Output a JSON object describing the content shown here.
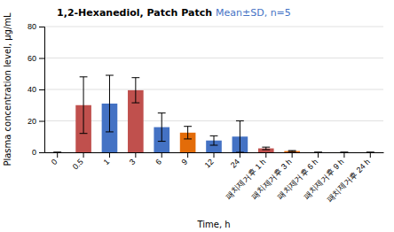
{
  "chart_data": {
    "type": "bar",
    "title": "1,2-Hexanediol, Patch Patch",
    "subtitle": "Mean±SD, n=5",
    "xlabel": "Time, h",
    "ylabel": "Plasma concentration level, μg/mL",
    "categories": [
      "0",
      "0.5",
      "1",
      "3",
      "6",
      "9",
      "12",
      "24",
      "패치제거후 1 h",
      "패치제거후 3 h",
      "패치제거후 6 h",
      "패치제거후 9 h",
      "패치제거후 24 h"
    ],
    "values": [
      0,
      30,
      31,
      39.5,
      16,
      12.5,
      7.5,
      10,
      2.5,
      0.8,
      0,
      0,
      0
    ],
    "errors": [
      0,
      18,
      18,
      8,
      9,
      4,
      3,
      10,
      0.8,
      0.3,
      0,
      0,
      0
    ],
    "colors": [
      "#4472c4",
      "#c0504d",
      "#4472c4",
      "#c0504d",
      "#4472c4",
      "#e36c09",
      "#4472c4",
      "#4472c4",
      "#c0504d",
      "#e36c09",
      "#4472c4",
      "#4472c4",
      "#4472c4"
    ],
    "ylim": [
      0,
      80
    ],
    "yticks": [
      0,
      20,
      40,
      60,
      80
    ],
    "grid": true
  }
}
